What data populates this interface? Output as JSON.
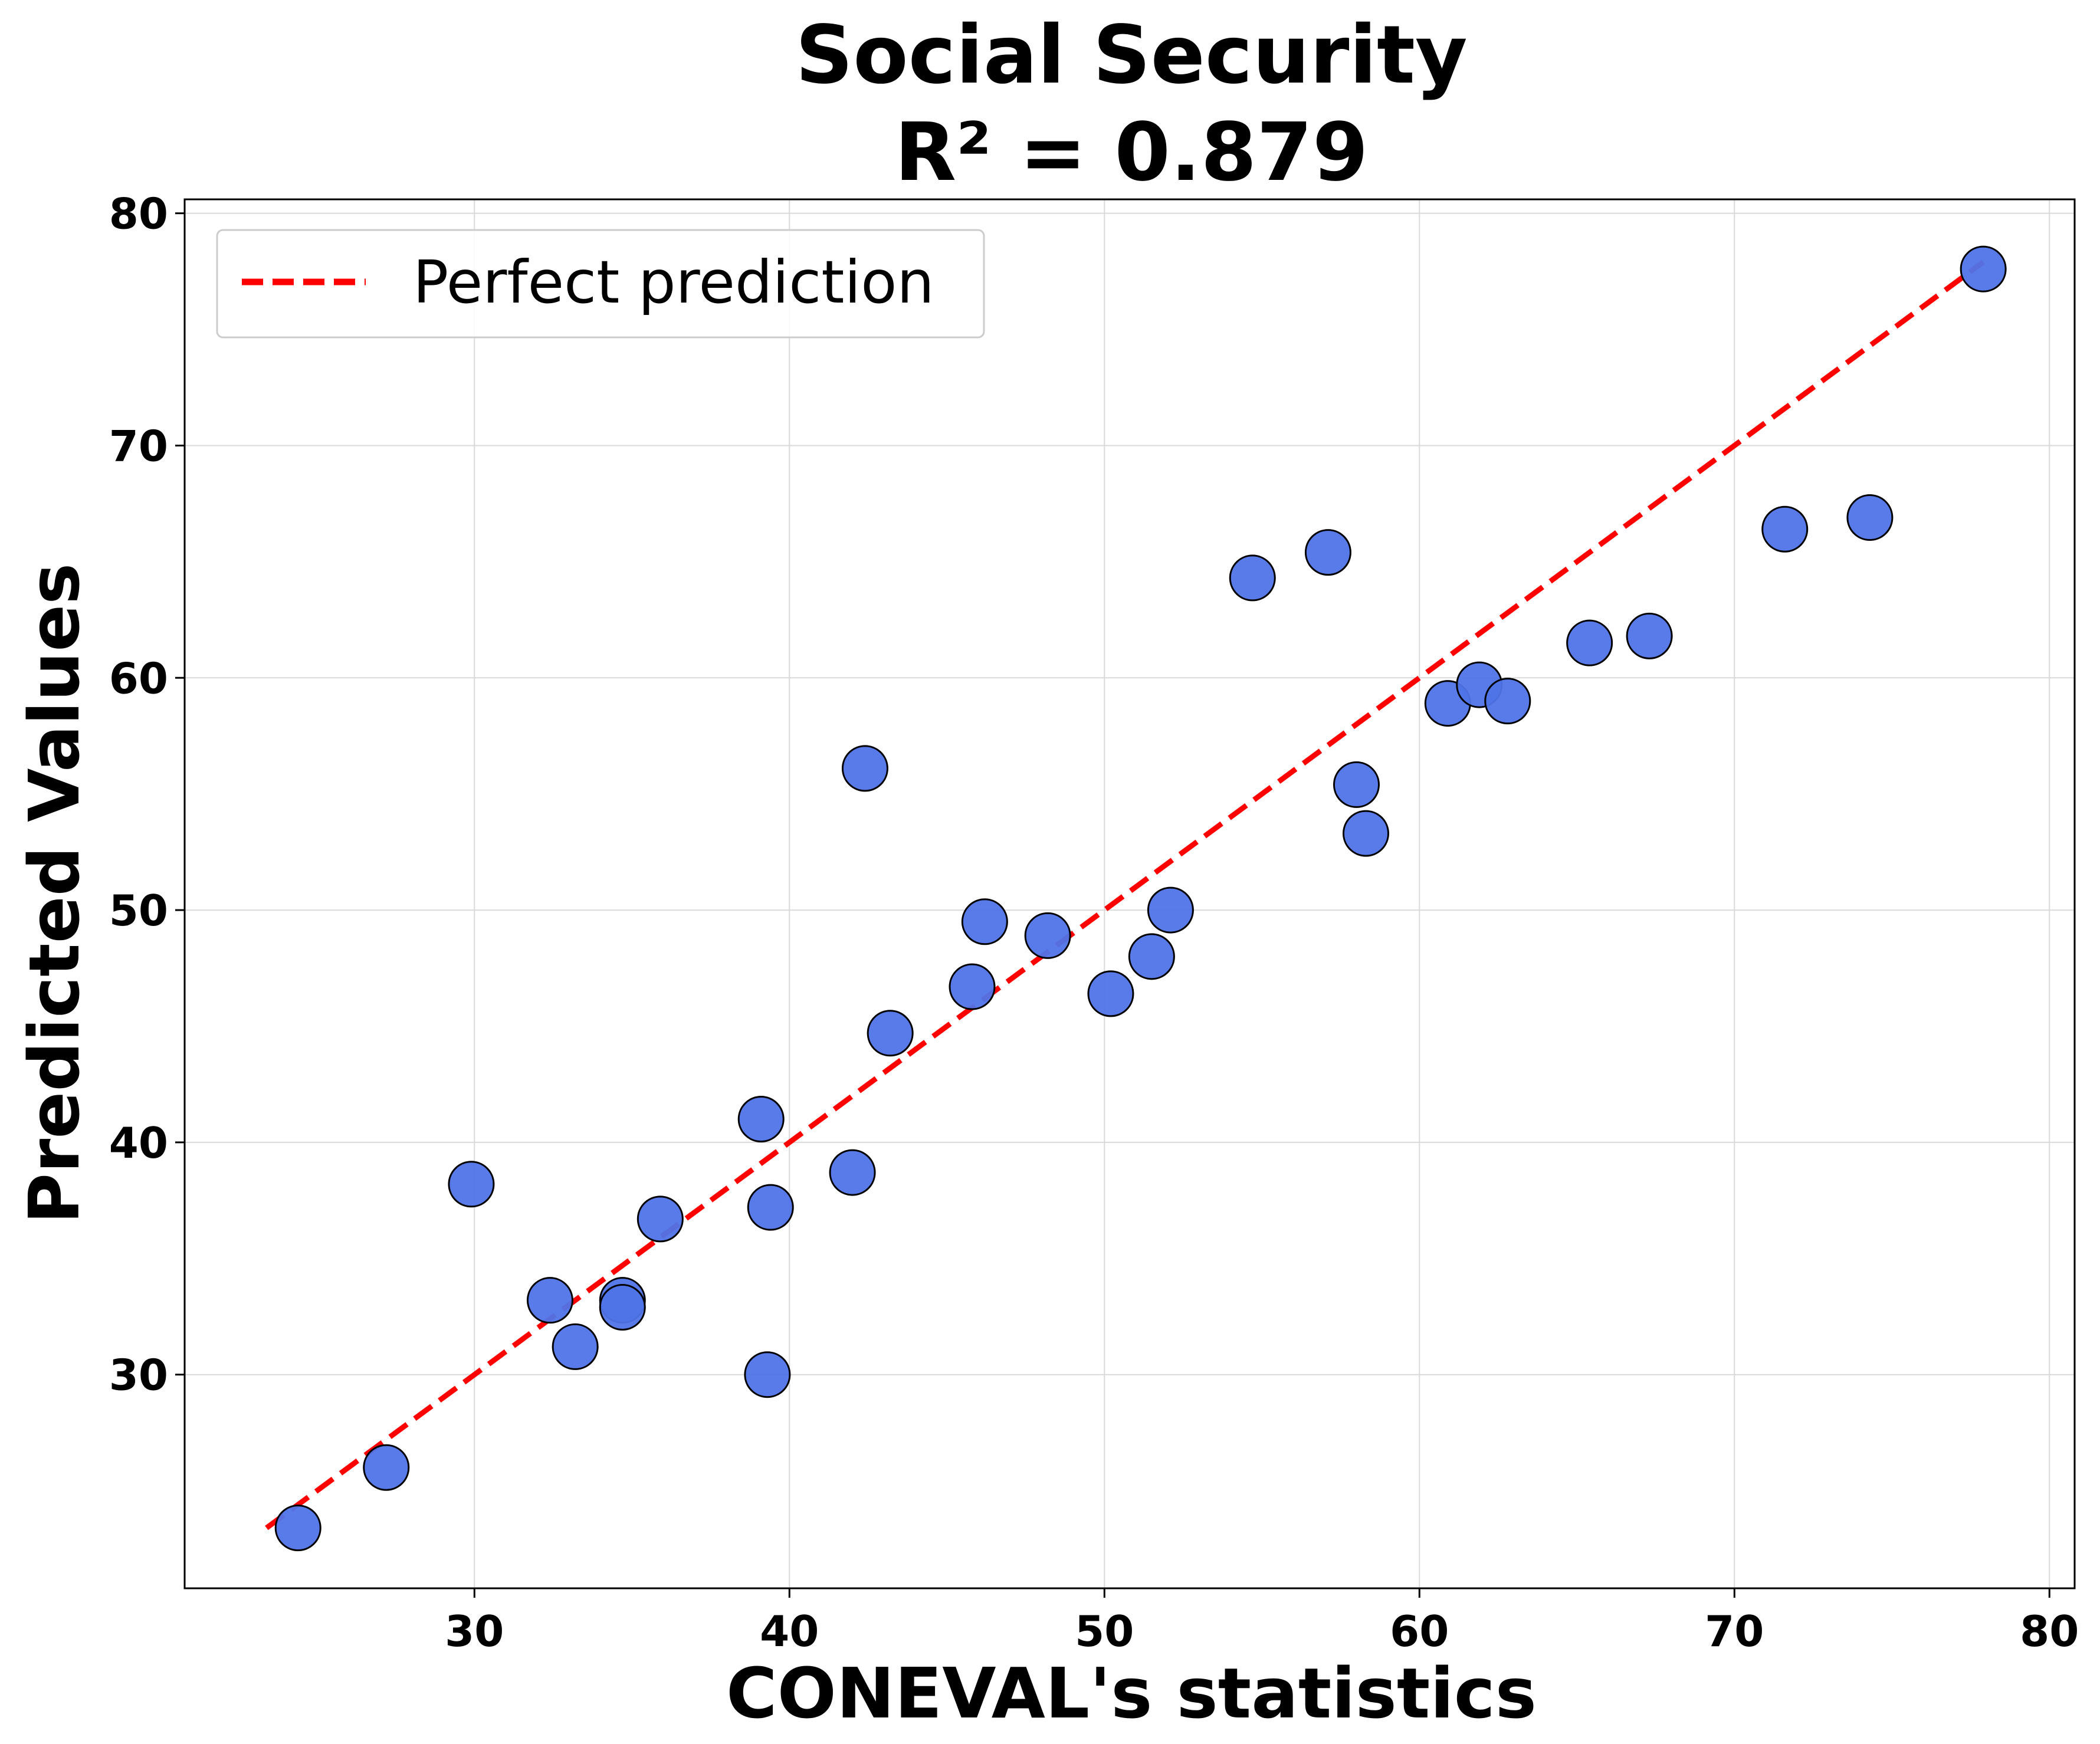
{
  "chart_data": {
    "type": "scatter",
    "title": "Social Security",
    "subtitle": "R² = 0.879",
    "xlabel": "CONEVAL's statistics",
    "ylabel": "Predicted Values",
    "xlim": [
      20.8,
      80.8
    ],
    "ylim": [
      20.8,
      80.6
    ],
    "xticks": [
      30,
      40,
      50,
      60,
      70,
      80
    ],
    "yticks": [
      30,
      40,
      50,
      60,
      70,
      80
    ],
    "xtick_labels": [
      "30",
      "40",
      "50",
      "60",
      "70",
      "80"
    ],
    "ytick_labels": [
      "30",
      "40",
      "50",
      "60",
      "70",
      "80"
    ],
    "grid": true,
    "legend": {
      "position": "top-left",
      "entries": [
        "Perfect prediction"
      ]
    },
    "reference_line": {
      "name": "Perfect prediction",
      "x": [
        23.4,
        77.9
      ],
      "y": [
        23.4,
        77.9
      ],
      "color": "#ff0000",
      "style": "dashed"
    },
    "point_color": "#4f74e8",
    "point_edge_color": "#000000",
    "line_color": "#ff0000",
    "points": [
      {
        "x": 24.4,
        "y": 23.4
      },
      {
        "x": 27.2,
        "y": 26.0
      },
      {
        "x": 29.9,
        "y": 38.2
      },
      {
        "x": 32.4,
        "y": 33.2
      },
      {
        "x": 33.2,
        "y": 31.2
      },
      {
        "x": 34.7,
        "y": 33.2
      },
      {
        "x": 34.7,
        "y": 32.9
      },
      {
        "x": 35.9,
        "y": 36.7
      },
      {
        "x": 39.1,
        "y": 41.0
      },
      {
        "x": 39.3,
        "y": 30.0
      },
      {
        "x": 39.4,
        "y": 37.2
      },
      {
        "x": 42.0,
        "y": 38.7
      },
      {
        "x": 42.4,
        "y": 56.1
      },
      {
        "x": 43.2,
        "y": 44.7
      },
      {
        "x": 45.8,
        "y": 46.7
      },
      {
        "x": 46.2,
        "y": 49.5
      },
      {
        "x": 48.2,
        "y": 48.9
      },
      {
        "x": 50.2,
        "y": 46.4
      },
      {
        "x": 51.5,
        "y": 48.0
      },
      {
        "x": 52.1,
        "y": 50.0
      },
      {
        "x": 54.7,
        "y": 64.3
      },
      {
        "x": 57.1,
        "y": 65.4
      },
      {
        "x": 58.0,
        "y": 55.4
      },
      {
        "x": 58.3,
        "y": 53.3
      },
      {
        "x": 60.9,
        "y": 58.9
      },
      {
        "x": 61.9,
        "y": 59.7
      },
      {
        "x": 62.8,
        "y": 59.0
      },
      {
        "x": 65.4,
        "y": 61.5
      },
      {
        "x": 67.3,
        "y": 61.8
      },
      {
        "x": 71.6,
        "y": 66.4
      },
      {
        "x": 74.3,
        "y": 66.9
      },
      {
        "x": 77.9,
        "y": 77.6
      }
    ]
  }
}
